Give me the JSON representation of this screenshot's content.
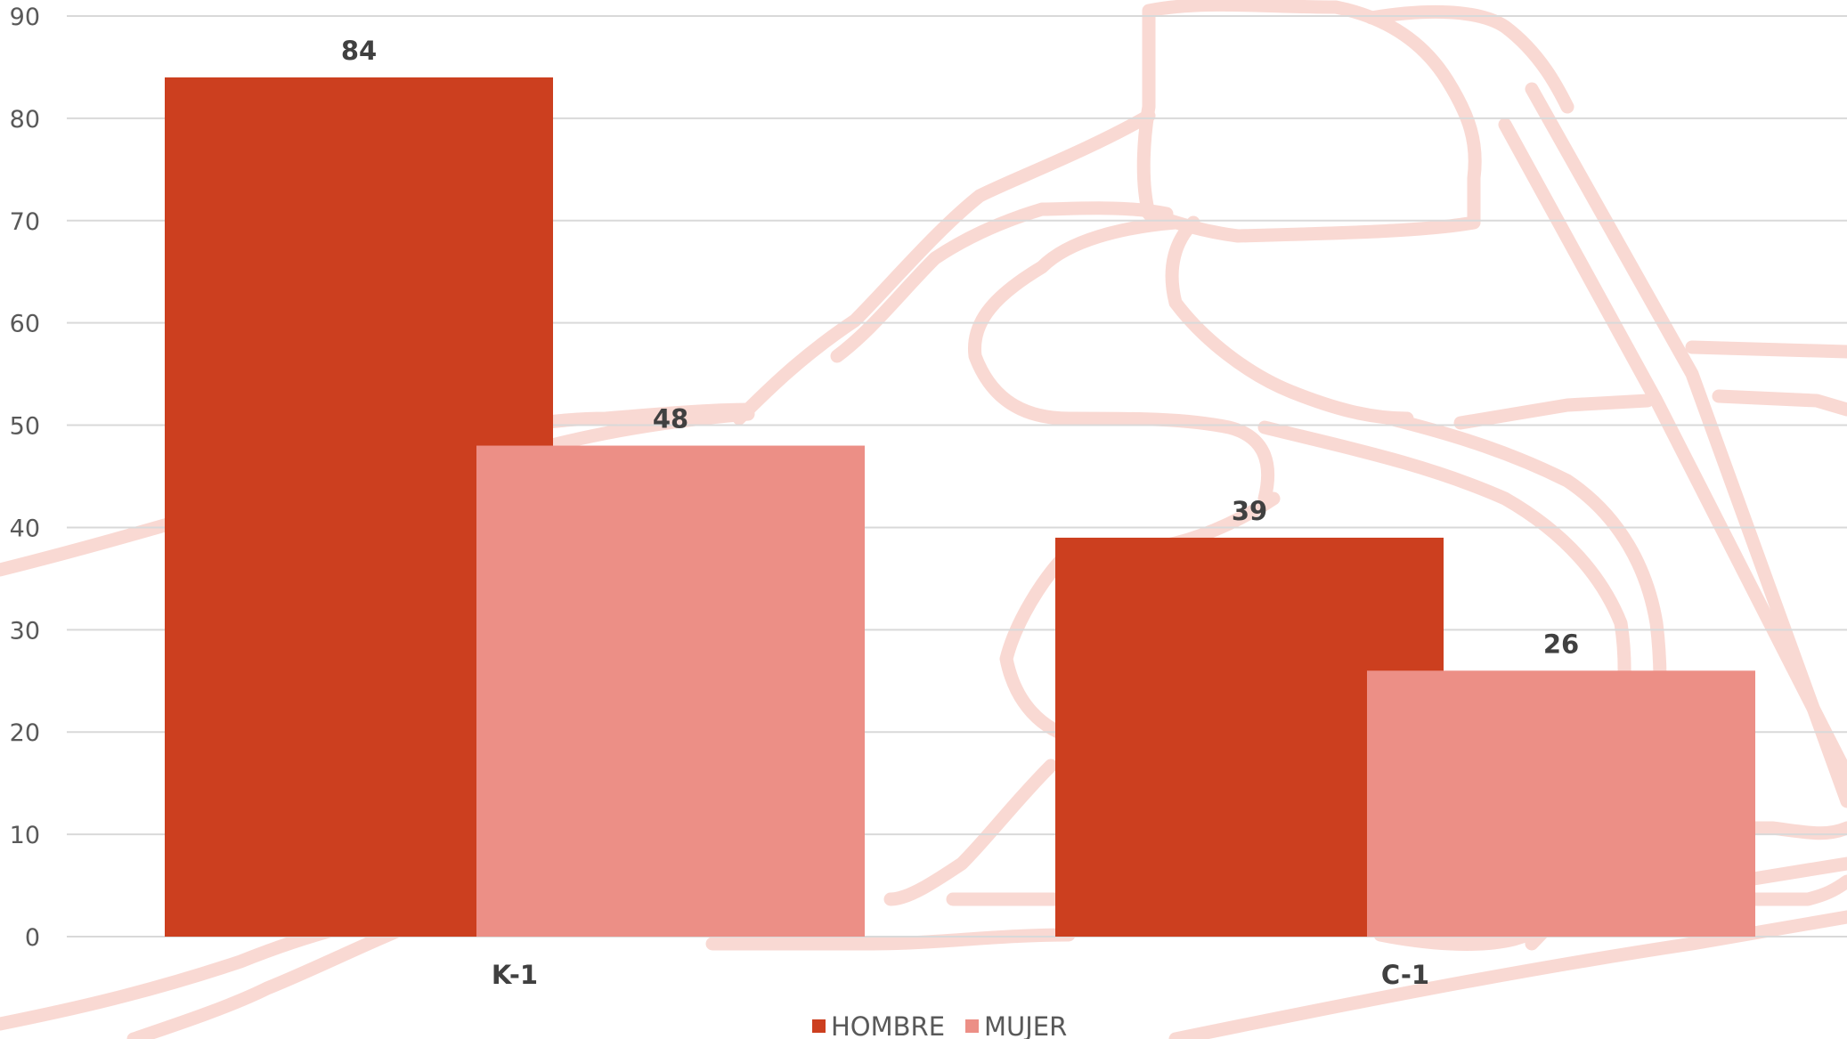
{
  "chart_data": {
    "type": "bar",
    "title": "",
    "xlabel": "",
    "ylabel": "",
    "categories": [
      "K-1",
      "C-1"
    ],
    "series": [
      {
        "name": "HOMBRE",
        "values": [
          84,
          39
        ],
        "color": "#cc3f1f"
      },
      {
        "name": "MUJER",
        "values": [
          48,
          26
        ],
        "color": "#ec8f86"
      }
    ],
    "ylim": [
      0,
      90
    ],
    "yticks": [
      0,
      10,
      20,
      30,
      40,
      50,
      60,
      70,
      80,
      90
    ],
    "grid": true,
    "legend_position": "bottom",
    "data_labels": true
  },
  "background": {
    "illustration": "canoe-paddler-outline-icon",
    "line_color": "#f9d9d3"
  },
  "colors": {
    "gridline": "#d9d9d9",
    "axis_text": "#595959",
    "label_text": "#404040"
  }
}
